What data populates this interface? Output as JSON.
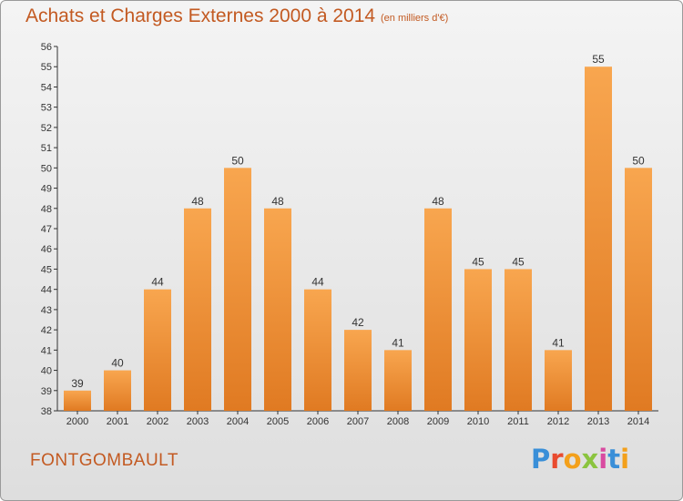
{
  "header": {
    "title": "Achats et Charges Externes 2000 à 2014",
    "subtitle": "(en milliers d'€)"
  },
  "footer": {
    "commune": "FONTGOMBAULT",
    "brand": [
      "P",
      "r",
      "o",
      "x",
      "i",
      "t",
      "i"
    ]
  },
  "colors": {
    "bar_top": "#f8a64f",
    "bar_bottom": "#e07a22",
    "title": "#c35a22"
  },
  "chart_data": {
    "type": "bar",
    "title": "Achats et Charges Externes 2000 à 2014",
    "subtitle": "(en milliers d'€)",
    "xlabel": "",
    "ylabel": "",
    "categories": [
      "2000",
      "2001",
      "2002",
      "2003",
      "2004",
      "2005",
      "2006",
      "2007",
      "2008",
      "2009",
      "2010",
      "2011",
      "2012",
      "2013",
      "2014"
    ],
    "values": [
      39,
      40,
      44,
      48,
      50,
      48,
      44,
      42,
      41,
      48,
      45,
      45,
      41,
      55,
      50
    ],
    "ylim": [
      38,
      56
    ],
    "yticks": [
      38,
      39,
      40,
      41,
      42,
      43,
      44,
      45,
      46,
      47,
      48,
      49,
      50,
      51,
      52,
      53,
      54,
      55,
      56
    ],
    "grid": false,
    "legend": "none"
  }
}
